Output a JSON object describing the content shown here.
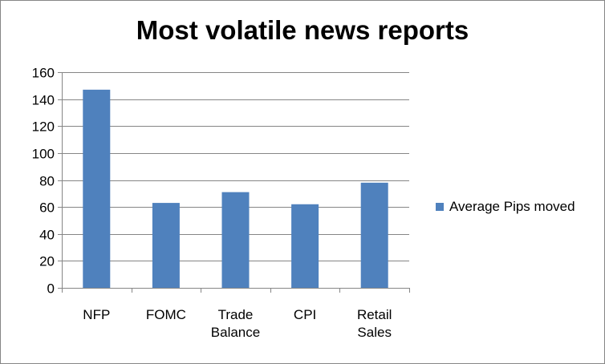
{
  "colors": {
    "series": "#4f81bd",
    "grid": "#868686",
    "axis": "#868686"
  },
  "chart_data": {
    "type": "bar",
    "title": "Most volatile news reports",
    "categories": [
      [
        "NFP"
      ],
      [
        "FOMC"
      ],
      [
        "Trade",
        "Balance"
      ],
      [
        "CPI"
      ],
      [
        "Retail",
        "Sales"
      ]
    ],
    "series": [
      {
        "name": "Average Pips moved",
        "values": [
          147,
          63,
          71,
          62,
          78
        ]
      }
    ],
    "ylim": [
      0,
      160
    ],
    "yticks": [
      0,
      20,
      40,
      60,
      80,
      100,
      120,
      140,
      160
    ],
    "grid": true,
    "legend": "right"
  }
}
